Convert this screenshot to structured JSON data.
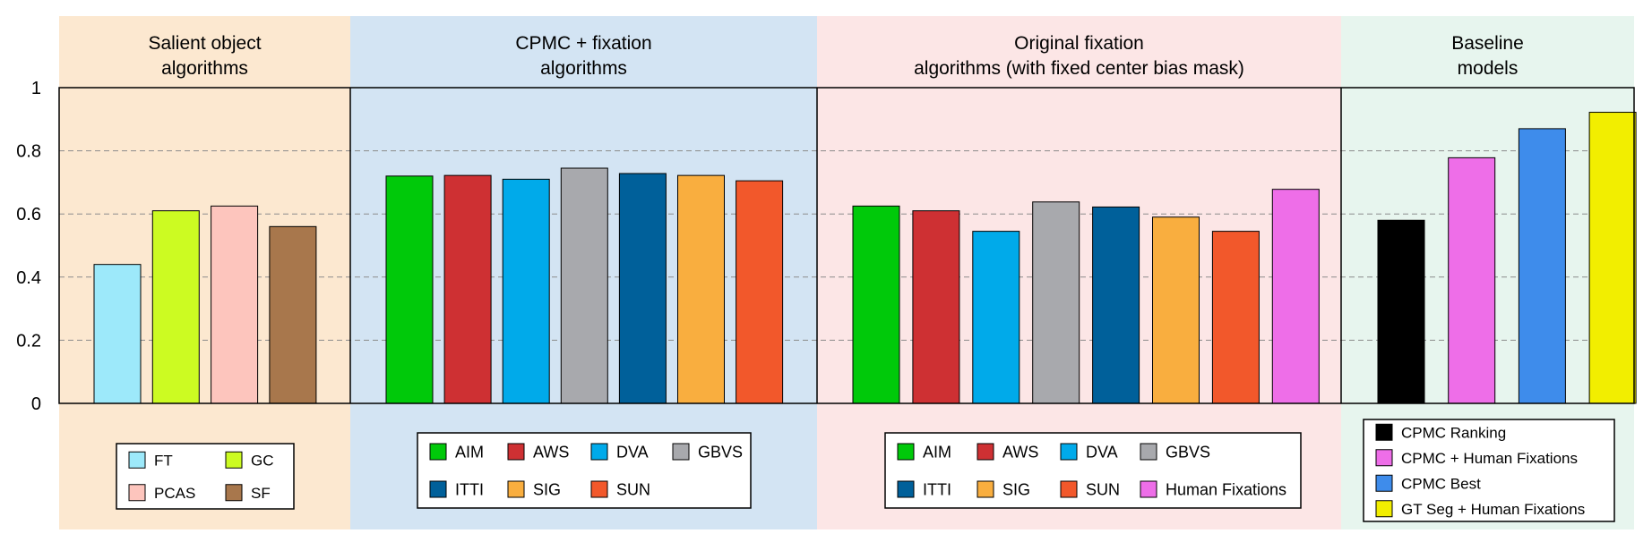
{
  "chart_data": {
    "type": "bar",
    "ylim": [
      0,
      1
    ],
    "y_ticks": [
      {
        "value": 0,
        "label": "0"
      },
      {
        "value": 0.2,
        "label": "0.2"
      },
      {
        "value": 0.4,
        "label": "0.4"
      },
      {
        "value": 0.6,
        "label": "0.6"
      },
      {
        "value": 0.8,
        "label": "0.8"
      },
      {
        "value": 1,
        "label": "1"
      }
    ],
    "grid": "dashed horizontal",
    "groups": [
      {
        "title_lines": [
          "Salient object",
          "algorithms"
        ],
        "bg_color": "#fce8d0",
        "legend_columns": 2,
        "bars": [
          {
            "name": "FT",
            "value": 0.44,
            "color": "#9de9fa"
          },
          {
            "name": "GC",
            "value": 0.61,
            "color": "#ccfb22"
          },
          {
            "name": "PCAS",
            "value": 0.625,
            "color": "#fdc5bd"
          },
          {
            "name": "SF",
            "value": 0.56,
            "color": "#a8774c"
          }
        ]
      },
      {
        "title_lines": [
          "CPMC + fixation",
          "algorithms"
        ],
        "bg_color": "#d3e4f3",
        "legend_columns": 4,
        "bars": [
          {
            "name": "AIM",
            "value": 0.72,
            "color": "#00c90a"
          },
          {
            "name": "AWS",
            "value": 0.722,
            "color": "#ce3033"
          },
          {
            "name": "DVA",
            "value": 0.71,
            "color": "#00aaea"
          },
          {
            "name": "GBVS",
            "value": 0.745,
            "color": "#a8a9ad"
          },
          {
            "name": "ITTI",
            "value": 0.728,
            "color": "#00609a"
          },
          {
            "name": "SIG",
            "value": 0.722,
            "color": "#f9ae3f"
          },
          {
            "name": "SUN",
            "value": 0.705,
            "color": "#f2582b"
          }
        ]
      },
      {
        "title_lines": [
          "Original fixation",
          "algorithms (with fixed center bias mask)"
        ],
        "bg_color": "#fce6e6",
        "legend_columns": 4,
        "bars": [
          {
            "name": "AIM",
            "value": 0.625,
            "color": "#00c90a"
          },
          {
            "name": "AWS",
            "value": 0.61,
            "color": "#ce3033"
          },
          {
            "name": "DVA",
            "value": 0.545,
            "color": "#00aaea"
          },
          {
            "name": "GBVS",
            "value": 0.638,
            "color": "#a8a9ad"
          },
          {
            "name": "ITTI",
            "value": 0.622,
            "color": "#00609a"
          },
          {
            "name": "SIG",
            "value": 0.59,
            "color": "#f9ae3f"
          },
          {
            "name": "SUN",
            "value": 0.545,
            "color": "#f2582b"
          },
          {
            "name": "Human Fixations",
            "value": 0.678,
            "color": "#ee6ee8"
          }
        ]
      },
      {
        "title_lines": [
          "Baseline",
          "models"
        ],
        "bg_color": "#e7f5ee",
        "legend_columns": 1,
        "bars": [
          {
            "name": "CPMC Ranking",
            "value": 0.58,
            "color": "#000000"
          },
          {
            "name": "CPMC + Human Fixations",
            "value": 0.778,
            "color": "#ee6ee8"
          },
          {
            "name": "CPMC Best",
            "value": 0.87,
            "color": "#3e8ceb"
          },
          {
            "name": "GT Seg + Human Fixations",
            "value": 0.922,
            "color": "#f2ee00"
          }
        ]
      }
    ]
  }
}
